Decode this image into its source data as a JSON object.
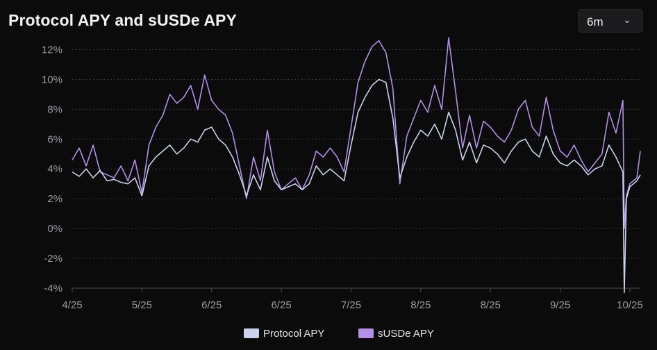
{
  "header": {
    "title": "Protocol APY and sUSDe APY"
  },
  "range_selector": {
    "selected": "6m",
    "chevron_icon": "chevron-down-icon"
  },
  "colors": {
    "protocol": "#c9d3ec",
    "susde": "#b48ee8",
    "grid": "#3a3a40",
    "tick": "#9a9aa2"
  },
  "chart_data": {
    "type": "line",
    "title": "Protocol APY and sUSDe APY",
    "xlabel": "",
    "ylabel": "",
    "x_tick_labels": [
      "4/25",
      "5/25",
      "6/25",
      "6/25",
      "7/25",
      "8/25",
      "8/25",
      "9/25",
      "10/25"
    ],
    "x_tick_positions": [
      0,
      1,
      2,
      3,
      4,
      5,
      6,
      7,
      8
    ],
    "ylim": [
      -4,
      13
    ],
    "y_ticks": [
      -4,
      -2,
      0,
      2,
      4,
      6,
      8,
      10,
      12
    ],
    "y_tick_labels": [
      "-4%",
      "-2%",
      "0%",
      "2%",
      "4%",
      "6%",
      "8%",
      "10%",
      "12%"
    ],
    "grid": "horizontal",
    "legend_position": "bottom-center",
    "series": [
      {
        "name": "Protocol APY",
        "x": [
          0,
          0.1,
          0.2,
          0.3,
          0.4,
          0.5,
          0.6,
          0.7,
          0.8,
          0.9,
          1,
          1.1,
          1.2,
          1.3,
          1.4,
          1.5,
          1.6,
          1.7,
          1.8,
          1.9,
          2,
          2.1,
          2.2,
          2.3,
          2.4,
          2.5,
          2.6,
          2.7,
          2.8,
          2.9,
          3,
          3.1,
          3.2,
          3.3,
          3.4,
          3.5,
          3.6,
          3.7,
          3.8,
          3.9,
          4,
          4.1,
          4.2,
          4.3,
          4.4,
          4.5,
          4.6,
          4.7,
          4.8,
          4.9,
          5,
          5.1,
          5.2,
          5.3,
          5.4,
          5.5,
          5.6,
          5.7,
          5.8,
          5.9,
          6,
          6.1,
          6.2,
          6.3,
          6.4,
          6.5,
          6.6,
          6.7,
          6.8,
          6.9,
          7,
          7.1,
          7.2,
          7.3,
          7.4,
          7.5,
          7.6,
          7.7,
          7.8,
          7.9,
          7.92,
          7.95,
          8,
          8.05,
          8.1,
          8.15
        ],
        "values": [
          3.8,
          3.5,
          4.0,
          3.4,
          3.9,
          3.2,
          3.3,
          3.1,
          3.0,
          3.4,
          2.2,
          4.2,
          4.8,
          5.2,
          5.6,
          5.0,
          5.4,
          6.0,
          5.8,
          6.6,
          6.8,
          6.0,
          5.6,
          4.8,
          3.6,
          2.2,
          3.6,
          2.6,
          4.8,
          3.2,
          2.6,
          2.8,
          3.0,
          2.6,
          3.0,
          4.2,
          3.6,
          4.0,
          3.6,
          3.2,
          5.6,
          7.8,
          8.8,
          9.6,
          10.0,
          9.8,
          7.4,
          3.4,
          4.8,
          5.8,
          6.6,
          6.2,
          7.0,
          6.0,
          7.8,
          6.6,
          4.6,
          5.8,
          4.4,
          5.6,
          5.4,
          5.0,
          4.4,
          5.2,
          5.8,
          6.0,
          5.2,
          4.8,
          6.2,
          5.0,
          4.4,
          4.2,
          4.6,
          4.2,
          3.6,
          4.0,
          4.2,
          5.6,
          4.8,
          3.8,
          -4.3,
          2.0,
          2.8,
          3.0,
          3.2,
          3.6
        ]
      },
      {
        "name": "sUSDe APY",
        "x": [
          0,
          0.1,
          0.2,
          0.3,
          0.4,
          0.5,
          0.6,
          0.7,
          0.8,
          0.9,
          1,
          1.1,
          1.2,
          1.3,
          1.4,
          1.5,
          1.6,
          1.7,
          1.8,
          1.9,
          2,
          2.1,
          2.2,
          2.3,
          2.4,
          2.5,
          2.6,
          2.7,
          2.8,
          2.9,
          3,
          3.1,
          3.2,
          3.3,
          3.4,
          3.5,
          3.6,
          3.7,
          3.8,
          3.9,
          4,
          4.1,
          4.2,
          4.3,
          4.4,
          4.5,
          4.6,
          4.7,
          4.8,
          4.9,
          5,
          5.1,
          5.2,
          5.3,
          5.4,
          5.5,
          5.6,
          5.7,
          5.8,
          5.9,
          6,
          6.1,
          6.2,
          6.3,
          6.4,
          6.5,
          6.6,
          6.7,
          6.8,
          6.9,
          7,
          7.1,
          7.2,
          7.3,
          7.4,
          7.5,
          7.6,
          7.7,
          7.8,
          7.9,
          7.92,
          7.95,
          8,
          8.05,
          8.1,
          8.15
        ],
        "values": [
          4.6,
          5.4,
          4.2,
          5.6,
          3.8,
          3.6,
          3.4,
          4.2,
          3.2,
          4.6,
          2.4,
          5.6,
          6.8,
          7.6,
          9.0,
          8.4,
          8.8,
          9.6,
          8.0,
          10.3,
          8.6,
          8.0,
          7.6,
          6.4,
          4.2,
          2.0,
          4.8,
          3.2,
          6.6,
          3.8,
          2.6,
          3.0,
          3.4,
          2.6,
          3.6,
          5.2,
          4.8,
          5.4,
          4.8,
          3.8,
          6.8,
          9.8,
          11.2,
          12.2,
          12.6,
          11.8,
          9.4,
          3.0,
          6.2,
          7.4,
          8.6,
          7.8,
          9.6,
          8.0,
          12.8,
          9.2,
          5.4,
          7.6,
          5.4,
          7.2,
          6.8,
          6.2,
          5.8,
          6.6,
          8.0,
          8.6,
          6.8,
          6.2,
          8.8,
          6.6,
          5.2,
          4.8,
          5.6,
          4.6,
          3.8,
          4.4,
          5.0,
          7.8,
          6.4,
          8.6,
          0.0,
          2.2,
          3.0,
          3.2,
          3.4,
          5.2
        ]
      }
    ]
  },
  "legend": {
    "protocol_label": "Protocol APY",
    "susde_label": "sUSDe APY"
  }
}
